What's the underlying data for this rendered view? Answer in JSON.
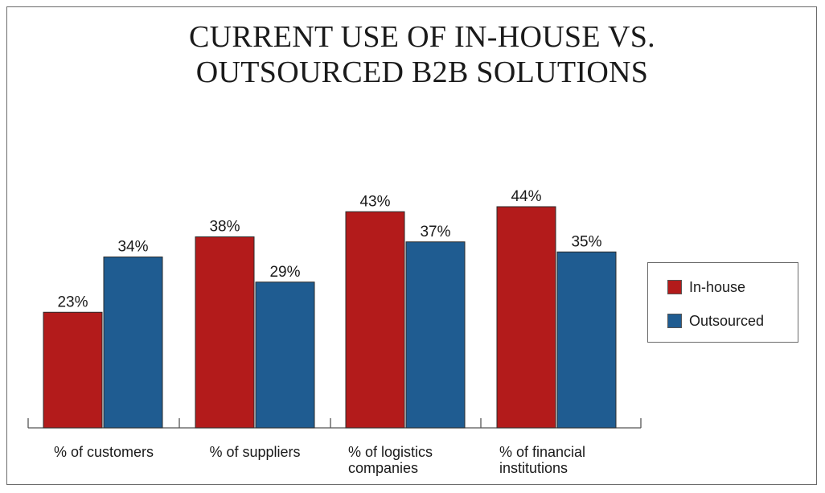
{
  "chart_data": {
    "type": "bar",
    "title": "CURRENT USE OF IN-HOUSE VS. OUTSOURCED B2B SOLUTIONS",
    "title_lines": [
      "CURRENT USE OF IN-HOUSE VS.",
      "OUTSOURCED B2B SOLUTIONS"
    ],
    "categories": [
      [
        "% of customers"
      ],
      [
        "% of suppliers"
      ],
      [
        "% of logistics",
        "companies"
      ],
      [
        "% of financial",
        "institutions"
      ]
    ],
    "series": [
      {
        "name": "In-house",
        "values": [
          23,
          38,
          43,
          44
        ],
        "color": "#b31b1b"
      },
      {
        "name": "Outsourced",
        "values": [
          34,
          29,
          37,
          35
        ],
        "color": "#1f5c91"
      }
    ],
    "value_suffix": "%",
    "ylim": [
      0,
      50
    ],
    "grid": false,
    "legend_position": "right",
    "xlabel": "",
    "ylabel": ""
  }
}
